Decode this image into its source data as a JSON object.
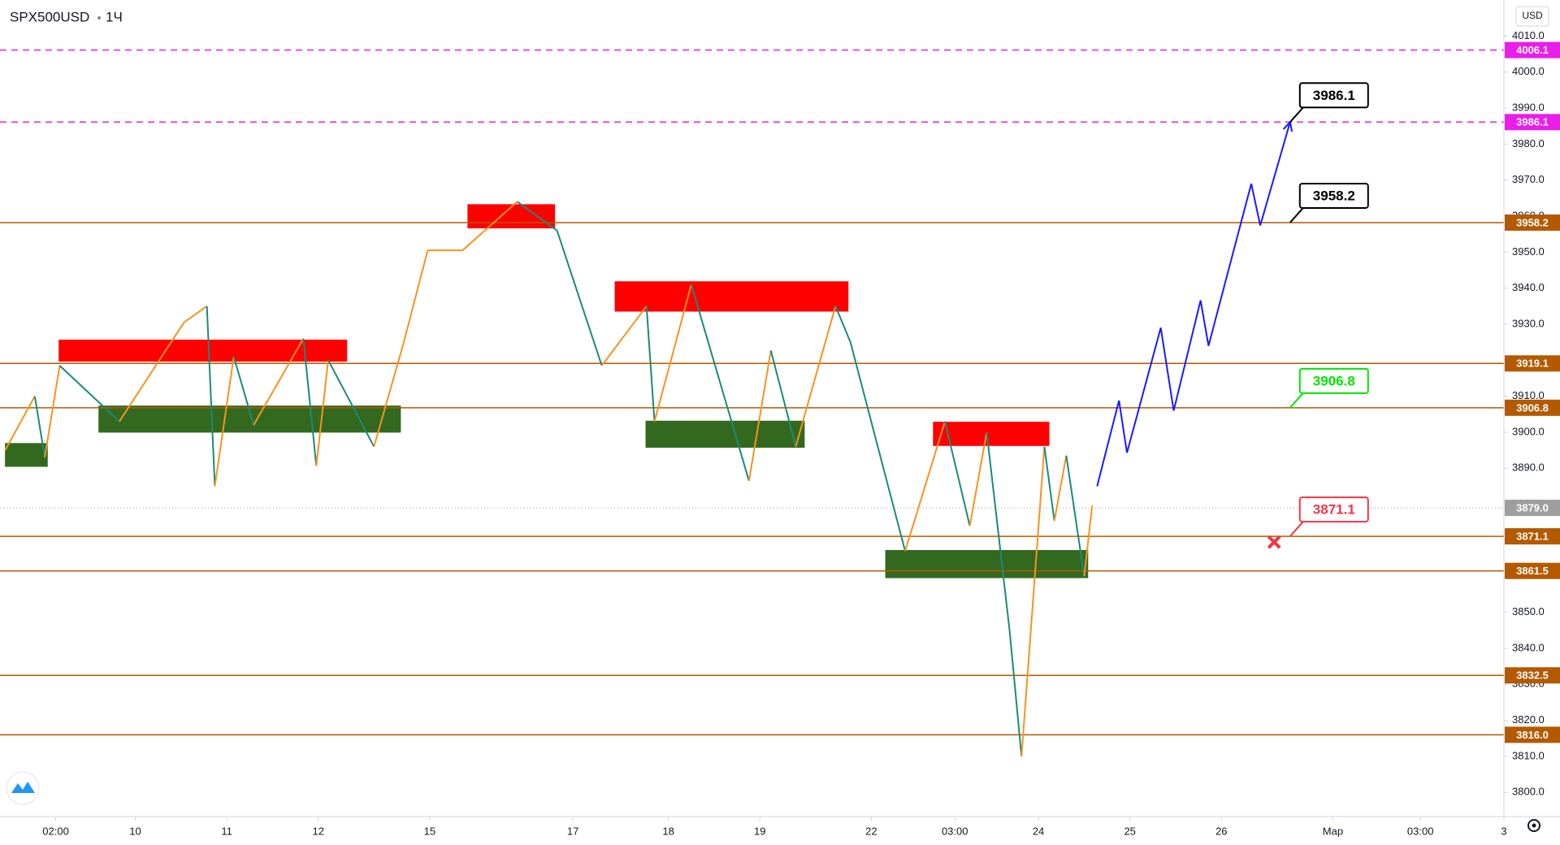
{
  "chart_data": {
    "type": "line",
    "symbol": "SPX500USD",
    "interval": "1Ч",
    "currency": "USD",
    "xlim": [
      0,
      378
    ],
    "ylim": [
      3793.3,
      4020
    ],
    "grid": false,
    "xticks": [
      {
        "value": 14,
        "label": "02:00"
      },
      {
        "value": 34,
        "label": "10"
      },
      {
        "value": 57,
        "label": "11"
      },
      {
        "value": 80,
        "label": "12"
      },
      {
        "value": 108,
        "label": "15"
      },
      {
        "value": 144,
        "label": "17"
      },
      {
        "value": 168,
        "label": "18"
      },
      {
        "value": 191,
        "label": "19"
      },
      {
        "value": 219,
        "label": "22"
      },
      {
        "value": 240,
        "label": "03:00"
      },
      {
        "value": 261,
        "label": "24"
      },
      {
        "value": 284,
        "label": "25"
      },
      {
        "value": 307,
        "label": "26"
      },
      {
        "value": 335,
        "label": "Мар"
      },
      {
        "value": 357,
        "label": "03:00"
      },
      {
        "value": 378,
        "label": "3"
      }
    ],
    "yticks": [
      {
        "value": 3800,
        "label": "3800.0"
      },
      {
        "value": 3810,
        "label": "3810.0"
      },
      {
        "value": 3820,
        "label": "3820.0"
      },
      {
        "value": 3830,
        "label": "3830.0"
      },
      {
        "value": 3840,
        "label": "3840.0"
      },
      {
        "value": 3850,
        "label": "3850.0"
      },
      {
        "value": 3860,
        "label": "3860.0"
      },
      {
        "value": 3870,
        "label": "3870.0"
      },
      {
        "value": 3880,
        "label": "3880.0"
      },
      {
        "value": 3890,
        "label": "3890.0"
      },
      {
        "value": 3900,
        "label": "3900.0"
      },
      {
        "value": 3910,
        "label": "3910.0"
      },
      {
        "value": 3920,
        "label": "3920.0"
      },
      {
        "value": 3930,
        "label": "3930.0"
      },
      {
        "value": 3940,
        "label": "3940.0"
      },
      {
        "value": 3950,
        "label": "3950.0"
      },
      {
        "value": 3960,
        "label": "3960.0"
      },
      {
        "value": 3970,
        "label": "3970.0"
      },
      {
        "value": 3980,
        "label": "3980.0"
      },
      {
        "value": 3990,
        "label": "3990.0"
      },
      {
        "value": 4000,
        "label": "4000.0"
      },
      {
        "value": 4010,
        "label": "4010.0"
      }
    ],
    "zones": [
      {
        "x": [
          117.5,
          139.5
        ],
        "y": [
          3956.6,
          3963.3
        ],
        "color": "#ff0000"
      },
      {
        "x": [
          14.75,
          87.25
        ],
        "y": [
          3919.6,
          3925.7
        ],
        "color": "#ff0000"
      },
      {
        "x": [
          154.5,
          213.25
        ],
        "y": [
          3933.5,
          3941.9
        ],
        "color": "#ff0000"
      },
      {
        "x": [
          234.5,
          263.75
        ],
        "y": [
          3896.2,
          3902.9
        ],
        "color": "#ff0000"
      },
      {
        "x": [
          1.25,
          12
        ],
        "y": [
          3890.4,
          3897
        ],
        "color": "#33691e"
      },
      {
        "x": [
          24.75,
          100.75
        ],
        "y": [
          3899.9,
          3907.4
        ],
        "color": "#33691e"
      },
      {
        "x": [
          162.25,
          202.25
        ],
        "y": [
          3895.7,
          3903.2
        ],
        "color": "#33691e"
      },
      {
        "x": [
          222.5,
          273.5
        ],
        "y": [
          3859.5,
          3867.3
        ],
        "color": "#33691e"
      }
    ],
    "series": [
      {
        "style": "zigzag",
        "up_color": "#f7931e",
        "down_color": "#1b8a7a",
        "x": [
          1.25,
          8.75,
          11.25,
          15,
          30,
          46.25,
          52,
          54,
          58.75,
          63.75,
          76.25,
          79.5,
          82.5,
          94,
          101.25,
          107.5,
          116.25,
          130,
          140,
          151.25,
          162.5,
          164.5,
          173.75,
          188.25,
          193.75,
          200,
          210,
          213.75,
          227.5,
          237.5,
          243.75,
          248,
          253.75,
          256.75,
          262.5,
          265,
          268,
          272.5,
          274.5
        ],
        "values": [
          3894.9,
          3910,
          3893,
          3918.5,
          3903,
          3930.5,
          3935,
          3885,
          3921,
          3902,
          3926,
          3890.7,
          3920,
          3896,
          3924,
          3950.5,
          3950.5,
          3964,
          3956,
          3918.5,
          3935,
          3903,
          3941,
          3886.5,
          3922.7,
          3896,
          3935,
          3925,
          3867,
          3903,
          3874,
          3900,
          3845,
          3810,
          3896,
          3875.4,
          3893.5,
          3860,
          3879.6
        ]
      },
      {
        "style": "arrow",
        "color": "#1a1aff",
        "x": [
          275.75,
          281.25,
          283.25,
          291.75,
          295,
          301.75,
          303.75,
          314.5,
          316.75,
          324.25
        ],
        "values": [
          3885,
          3908.8,
          3894.3,
          3929,
          3906,
          3936.6,
          3924,
          3969,
          3957.4,
          3986.1
        ]
      }
    ],
    "levels": [
      {
        "value": 4006.1,
        "color": "#e91ee9",
        "dashed": true
      },
      {
        "value": 3986.1,
        "color": "#e91ee9",
        "dashed": true
      },
      {
        "value": 3958.2,
        "color": "#b35a00",
        "dashed": false
      },
      {
        "value": 3919.1,
        "color": "#b35a00",
        "dashed": false
      },
      {
        "value": 3906.8,
        "color": "#b35a00",
        "dashed": false
      },
      {
        "value": 3871.1,
        "color": "#b35a00",
        "dashed": false
      },
      {
        "value": 3861.5,
        "color": "#b35a00",
        "dashed": false
      },
      {
        "value": 3832.5,
        "color": "#b35a00",
        "dashed": false
      },
      {
        "value": {
          "value": 3816,
          "label": "3816.0"
        },
        "color": "#b35a00",
        "dashed": false
      }
    ],
    "last_price": {
      "value": 3879,
      "label": "3879.0",
      "color": "#9e9e9e"
    },
    "callouts": [
      {
        "value": 3986.1,
        "x": 324.25,
        "color": "#000000"
      },
      {
        "value": 3958.2,
        "x": 324.25,
        "color": "#000000"
      },
      {
        "value": 3906.8,
        "x": 324.25,
        "color": "#00e600"
      },
      {
        "value": 3871.1,
        "x": 324.25,
        "color": "#f23645"
      }
    ],
    "marker": {
      "x": 320.25,
      "y": 3869.5,
      "color": "#f23645"
    }
  }
}
